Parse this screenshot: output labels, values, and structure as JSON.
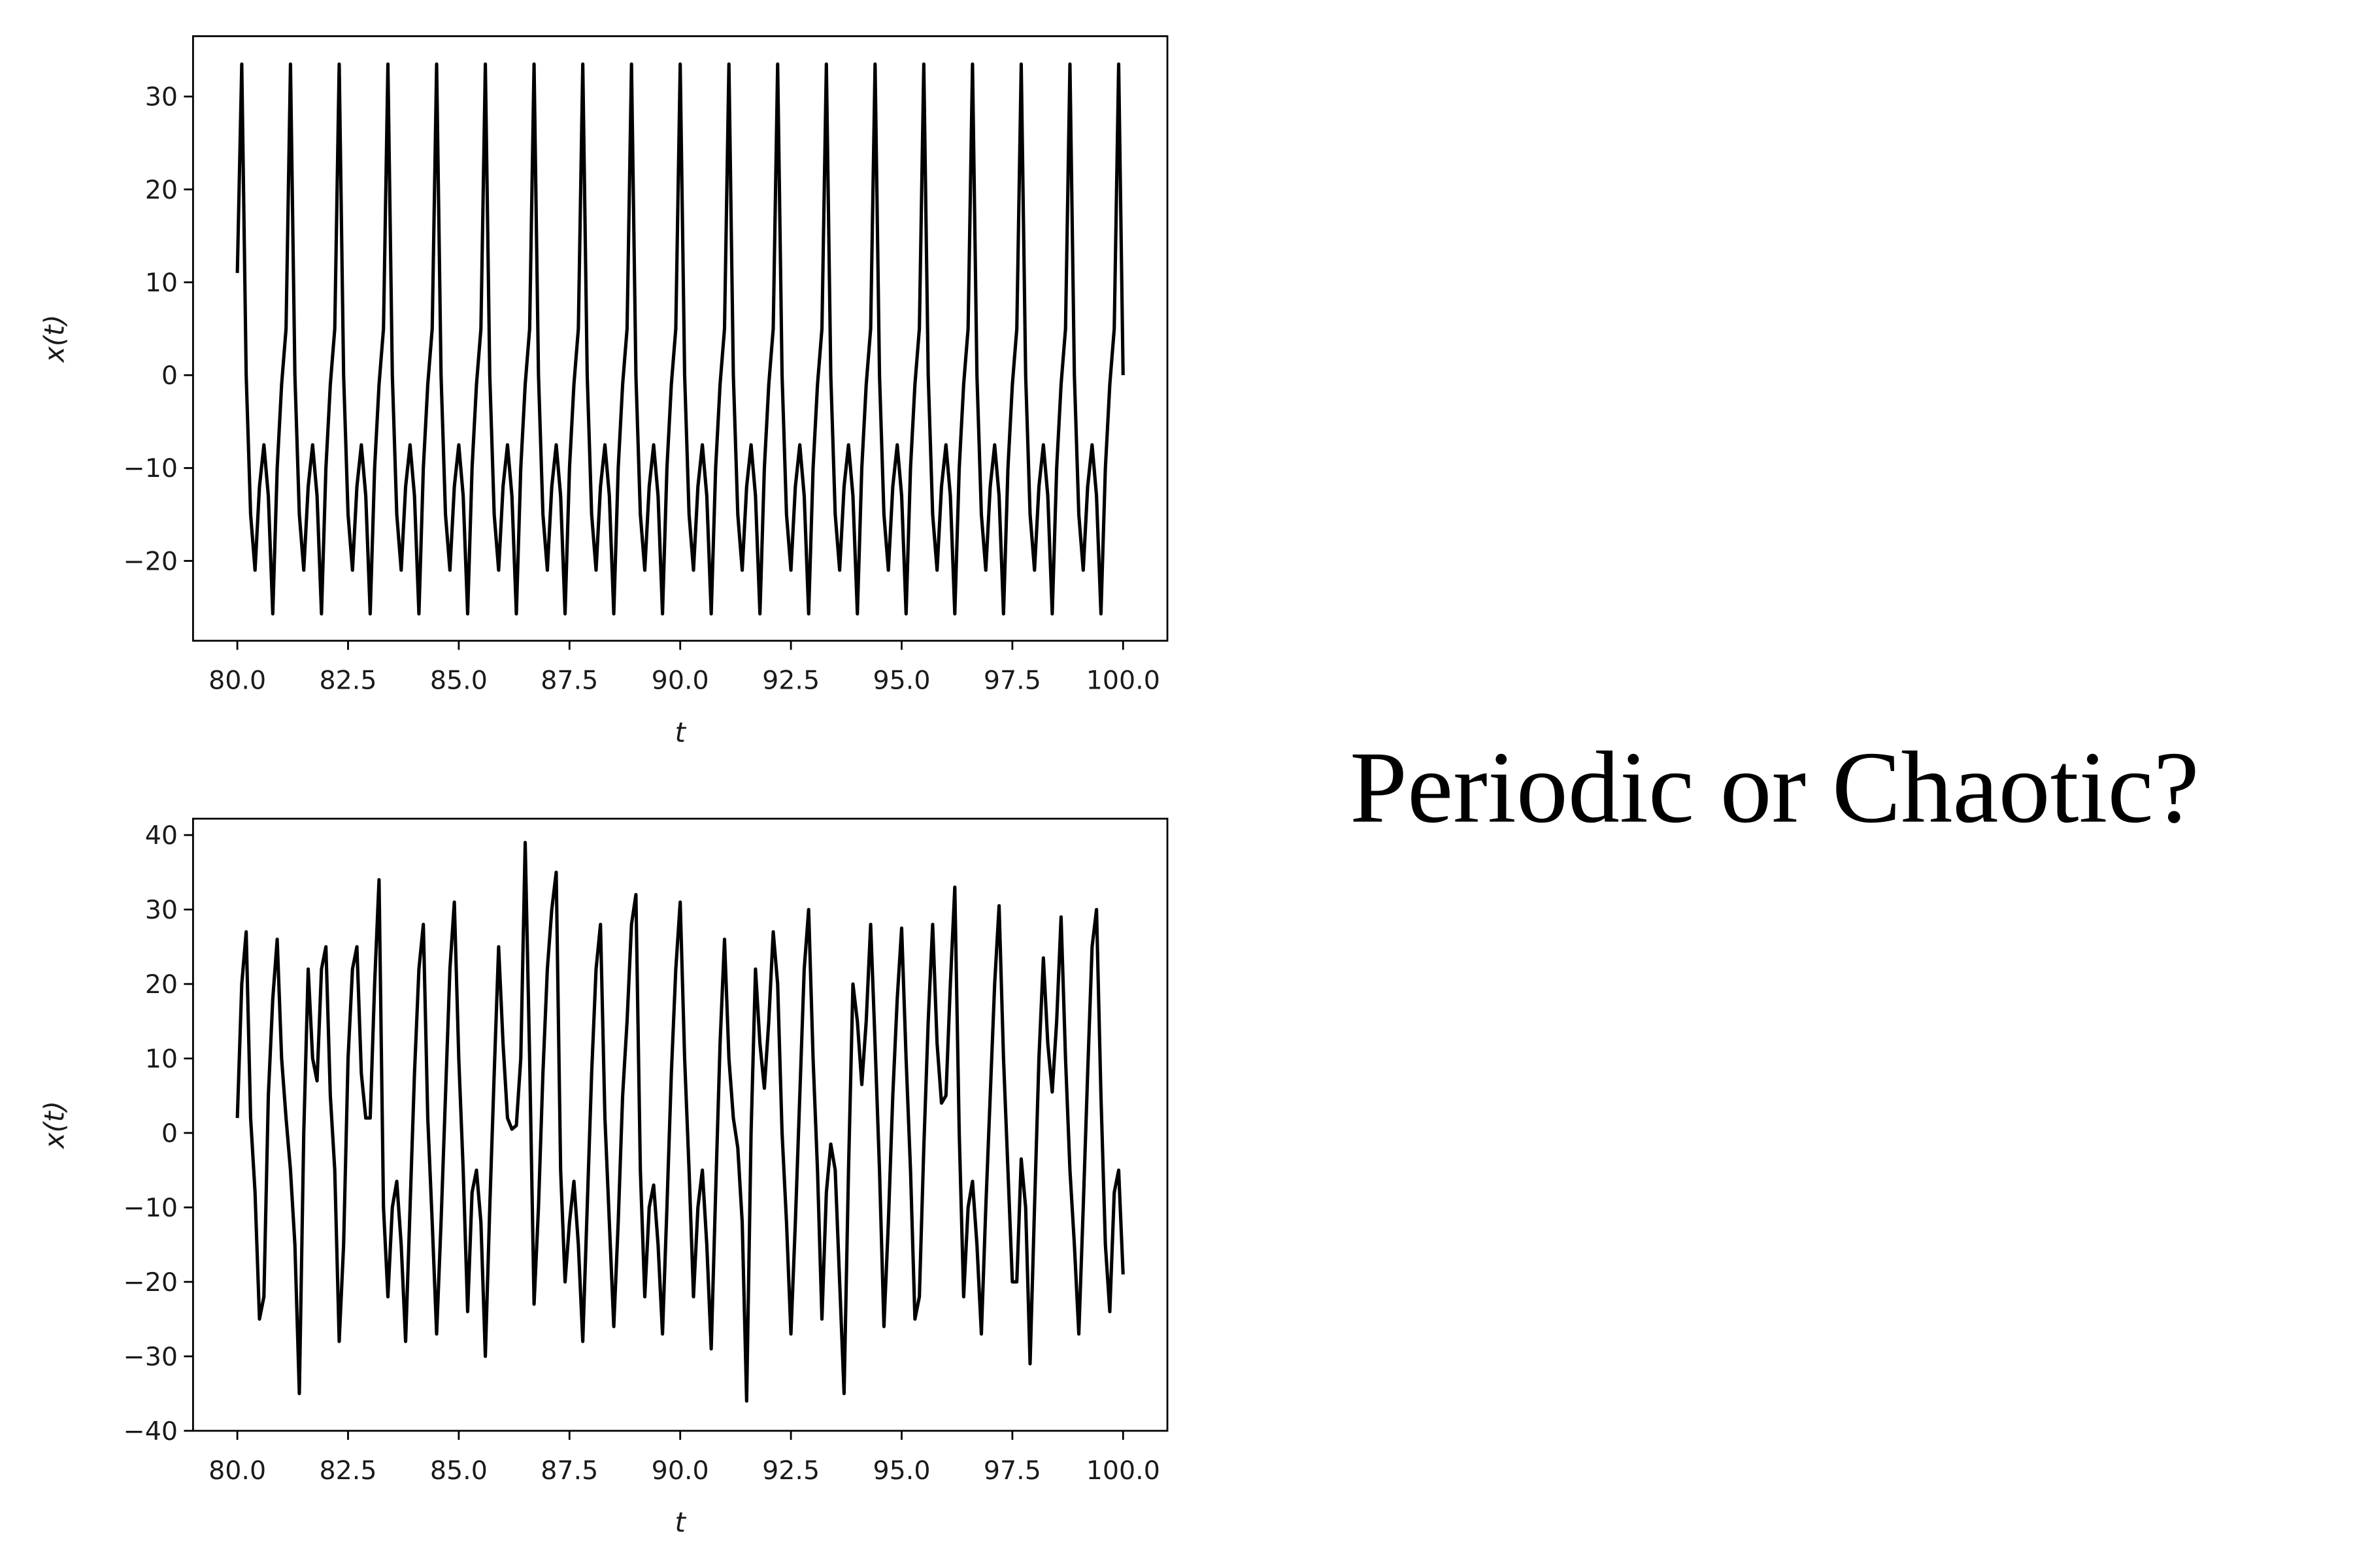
{
  "caption": "Periodic or Chaotic?",
  "chart_data": [
    {
      "type": "line",
      "xlabel": "t",
      "ylabel": "x(t)",
      "color": "#000000",
      "xlim": [
        79,
        101
      ],
      "ylim": [
        -28.6,
        36.5
      ],
      "xticks": [
        {
          "value": 80,
          "label": "80.0"
        },
        82.5,
        {
          "value": 85,
          "label": "85.0"
        },
        87.5,
        {
          "value": 90,
          "label": "90.0"
        },
        92.5,
        {
          "value": 95,
          "label": "95.0"
        },
        97.5,
        {
          "value": 100,
          "label": "100.0"
        }
      ],
      "yticks": [
        {
          "value": -20,
          "label": "−20"
        },
        {
          "value": -10,
          "label": "−10"
        },
        0,
        10,
        20,
        30
      ],
      "x": [
        80,
        80.1,
        80.2,
        80.3,
        80.4,
        80.5,
        80.6,
        80.7,
        80.8,
        80.9,
        81,
        81.1,
        81.2,
        81.3,
        81.4,
        81.5,
        81.6,
        81.7,
        81.8,
        81.9,
        82,
        82.1,
        82.2,
        82.3,
        82.4,
        82.5,
        82.6,
        82.7,
        82.8,
        82.9,
        83,
        83.1,
        83.2,
        83.3,
        83.4,
        83.5,
        83.6,
        83.7,
        83.8,
        83.9,
        84,
        84.1,
        84.2,
        84.3,
        84.4,
        84.5,
        84.6,
        84.7,
        84.8,
        84.9,
        85,
        85.1,
        85.2,
        85.3,
        85.4,
        85.5,
        85.6,
        85.7,
        85.8,
        85.9,
        86,
        86.1,
        86.2,
        86.3,
        86.4,
        86.5,
        86.6,
        86.7,
        86.8,
        86.9,
        87,
        87.1,
        87.2,
        87.3,
        87.4,
        87.5,
        87.6,
        87.7,
        87.8,
        87.9,
        88,
        88.1,
        88.2,
        88.3,
        88.4,
        88.5,
        88.6,
        88.7,
        88.8,
        88.9,
        89,
        89.1,
        89.2,
        89.3,
        89.4,
        89.5,
        89.6,
        89.7,
        89.8,
        89.9,
        90,
        90.1,
        90.2,
        90.3,
        90.4,
        90.5,
        90.6,
        90.7,
        90.8,
        90.9,
        91,
        91.1,
        91.2,
        91.3,
        91.4,
        91.5,
        91.6,
        91.7,
        91.8,
        91.9,
        92,
        92.1,
        92.2,
        92.3,
        92.4,
        92.5,
        92.6,
        92.7,
        92.8,
        92.9,
        93,
        93.1,
        93.2,
        93.3,
        93.4,
        93.5,
        93.6,
        93.7,
        93.8,
        93.9,
        94,
        94.1,
        94.2,
        94.3,
        94.4,
        94.5,
        94.6,
        94.7,
        94.8,
        94.9,
        95,
        95.1,
        95.2,
        95.3,
        95.4,
        95.5,
        95.6,
        95.7,
        95.8,
        95.9,
        96,
        96.1,
        96.2,
        96.3,
        96.4,
        96.5,
        96.6,
        96.7,
        96.8,
        96.9,
        97,
        97.1,
        97.2,
        97.3,
        97.4,
        97.5,
        97.6,
        97.7,
        97.8,
        97.9,
        98,
        98.1,
        98.2,
        98.3,
        98.4,
        98.5,
        98.6,
        98.7,
        98.8,
        98.9,
        99,
        99.1,
        99.2,
        99.3,
        99.4,
        99.5,
        99.6,
        99.7,
        99.8,
        99.9,
        100
      ],
      "values": [
        11,
        33.5,
        0,
        -15,
        -21,
        -12,
        -7.5,
        -13,
        -25.7,
        -10,
        -1,
        5,
        33.5,
        0,
        -15,
        -21,
        -12,
        -7.5,
        -13,
        -25.7,
        -10,
        -1,
        5,
        33.5,
        0,
        -15,
        -21,
        -12,
        -7.5,
        -13,
        -25.7,
        -10,
        -1,
        5,
        33.5,
        0,
        -15,
        -21,
        -12,
        -7.5,
        -13,
        -25.7,
        -10,
        -1,
        5,
        33.5,
        0,
        -15,
        -21,
        -12,
        -7.5,
        -13,
        -25.7,
        -10,
        -1,
        5,
        33.5,
        0,
        -15,
        -21,
        -12,
        -7.5,
        -13,
        -25.7,
        -10,
        -1,
        5,
        33.5,
        0,
        -15,
        -21,
        -12,
        -7.5,
        -13,
        -25.7,
        -10,
        -1,
        5,
        33.5,
        0,
        -15,
        -21,
        -12,
        -7.5,
        -13,
        -25.7,
        -10,
        -1,
        5,
        33.5,
        0,
        -15,
        -21,
        -12,
        -7.5,
        -13,
        -25.7,
        -10,
        -1,
        5,
        33.5,
        0,
        -15,
        -21,
        -12,
        -7.5,
        -13,
        -25.7,
        -10,
        -1,
        5,
        33.5,
        0,
        -15,
        -21,
        -12,
        -7.5,
        -13,
        -25.7,
        -10,
        -1,
        5,
        33.5,
        0,
        -15,
        -21,
        -12,
        -7.5,
        -13,
        -25.7,
        -10,
        -1,
        5,
        33.5,
        0,
        -15,
        -21,
        -12,
        -7.5,
        -13,
        -25.7,
        -10,
        -1,
        5,
        33.5,
        0,
        -15,
        -21,
        -12,
        -7.5,
        -13,
        -25.7,
        -10,
        -1,
        5,
        33.5,
        0,
        -15,
        -21,
        -12,
        -7.5,
        -13,
        -25.7,
        -10,
        -1,
        5,
        33.5,
        0,
        -15,
        -21,
        -12,
        -7.5,
        -13,
        -25.7,
        -10,
        -1,
        5,
        33.5,
        0,
        -15,
        -21,
        -12,
        -7.5,
        -13,
        -25.7,
        -10,
        -1,
        5,
        33.5,
        0,
        -15,
        -21,
        -12,
        -7.5,
        -13,
        -25.7,
        -10,
        -1,
        5,
        33.5,
        0
      ]
    },
    {
      "type": "line",
      "xlabel": "t",
      "ylabel": "x(t)",
      "color": "#000000",
      "xlim": [
        79,
        101
      ],
      "ylim": [
        -40,
        42.2
      ],
      "xticks": [
        {
          "value": 80,
          "label": "80.0"
        },
        82.5,
        {
          "value": 85,
          "label": "85.0"
        },
        87.5,
        {
          "value": 90,
          "label": "90.0"
        },
        92.5,
        {
          "value": 95,
          "label": "95.0"
        },
        97.5,
        {
          "value": 100,
          "label": "100.0"
        }
      ],
      "yticks": [
        {
          "value": -40,
          "label": "−40"
        },
        {
          "value": -30,
          "label": "−30"
        },
        {
          "value": -20,
          "label": "−20"
        },
        {
          "value": -10,
          "label": "−10"
        },
        0,
        10,
        20,
        30,
        40
      ],
      "x": [
        80,
        80.1,
        80.2,
        80.3,
        80.4,
        80.5,
        80.6,
        80.7,
        80.8,
        80.9,
        81,
        81.1,
        81.2,
        81.3,
        81.4,
        81.5,
        81.6,
        81.7,
        81.8,
        81.9,
        82,
        82.1,
        82.2,
        82.3,
        82.4,
        82.5,
        82.6,
        82.7,
        82.8,
        82.9,
        83,
        83.1,
        83.2,
        83.3,
        83.4,
        83.5,
        83.6,
        83.7,
        83.8,
        83.9,
        84,
        84.1,
        84.2,
        84.3,
        84.4,
        84.5,
        84.6,
        84.7,
        84.8,
        84.9,
        85,
        85.1,
        85.2,
        85.3,
        85.4,
        85.5,
        85.6,
        85.7,
        85.8,
        85.9,
        86,
        86.1,
        86.2,
        86.3,
        86.4,
        86.5,
        86.6,
        86.7,
        86.8,
        86.9,
        87,
        87.1,
        87.2,
        87.3,
        87.4,
        87.5,
        87.6,
        87.7,
        87.8,
        87.9,
        88,
        88.1,
        88.2,
        88.3,
        88.4,
        88.5,
        88.6,
        88.7,
        88.8,
        88.9,
        89,
        89.1,
        89.2,
        89.3,
        89.4,
        89.5,
        89.6,
        89.7,
        89.8,
        89.9,
        90,
        90.1,
        90.2,
        90.3,
        90.4,
        90.5,
        90.6,
        90.7,
        90.8,
        90.9,
        91,
        91.1,
        91.2,
        91.3,
        91.4,
        91.5,
        91.6,
        91.7,
        91.8,
        91.9,
        92,
        92.1,
        92.2,
        92.3,
        92.4,
        92.5,
        92.6,
        92.7,
        92.8,
        92.9,
        93,
        93.1,
        93.2,
        93.3,
        93.4,
        93.5,
        93.6,
        93.7,
        93.8,
        93.9,
        94,
        94.1,
        94.2,
        94.3,
        94.4,
        94.5,
        94.6,
        94.7,
        94.8,
        94.9,
        95,
        95.1,
        95.2,
        95.3,
        95.4,
        95.5,
        95.6,
        95.7,
        95.8,
        95.9,
        96,
        96.1,
        96.2,
        96.3,
        96.4,
        96.5,
        96.6,
        96.7,
        96.8,
        96.9,
        97,
        97.1,
        97.2,
        97.3,
        97.4,
        97.5,
        97.6,
        97.7,
        97.8,
        97.9,
        98,
        98.1,
        98.2,
        98.3,
        98.4,
        98.5,
        98.6,
        98.7,
        98.8,
        98.9,
        99,
        99.1,
        99.2,
        99.3,
        99.4,
        99.5,
        99.6,
        99.7,
        99.8,
        99.9,
        100
      ],
      "values": [
        2,
        20,
        27,
        2,
        -8,
        -25,
        -22,
        5,
        18,
        26,
        10,
        2,
        -5,
        -15,
        -35,
        0,
        22,
        10,
        7,
        22,
        25,
        5,
        -5,
        -28,
        -15,
        10,
        22,
        25,
        8,
        2,
        2,
        20,
        34,
        -10,
        -22,
        -10,
        -6.5,
        -15,
        -28,
        -10,
        8,
        22,
        28,
        2,
        -12,
        -27,
        -12,
        5,
        22,
        31,
        10,
        -5,
        -24,
        -8,
        -5,
        -12,
        -30,
        -10,
        8,
        25,
        12,
        2,
        0.5,
        1,
        10,
        39,
        10,
        -23,
        -10,
        8,
        22,
        30,
        35,
        -5,
        -20,
        -12,
        -6.5,
        -15,
        -28,
        -10,
        8,
        22,
        28,
        2,
        -12,
        -26,
        -12,
        5,
        15,
        28,
        32,
        -5,
        -22,
        -10,
        -7,
        -15,
        -27,
        -10,
        8,
        22,
        31,
        10,
        -5,
        -22,
        -10,
        -5,
        -15,
        -29,
        -8,
        12,
        26,
        10,
        2,
        -2,
        -12,
        -36,
        0,
        22,
        12,
        6,
        15,
        27,
        20,
        0,
        -12,
        -27,
        -12,
        5,
        22,
        30,
        10,
        -5,
        -25,
        -8,
        -1.5,
        -5,
        -20,
        -35,
        -5,
        20,
        15,
        6.5,
        15,
        28,
        12,
        -5,
        -26,
        -12,
        5,
        18,
        27.5,
        10,
        -5,
        -25,
        -22,
        -2,
        15,
        28,
        12,
        4,
        5,
        20,
        33,
        0,
        -22,
        -10,
        -6.5,
        -15,
        -27,
        -10,
        5,
        20,
        30.5,
        10,
        -5,
        -20,
        -20,
        -3.5,
        -10,
        -31,
        -10,
        10,
        23.5,
        12,
        5.5,
        15,
        29,
        10,
        -5,
        -15,
        -27,
        -10,
        8,
        25,
        30,
        5,
        -15,
        -24,
        -8,
        -5,
        -19
      ]
    }
  ]
}
